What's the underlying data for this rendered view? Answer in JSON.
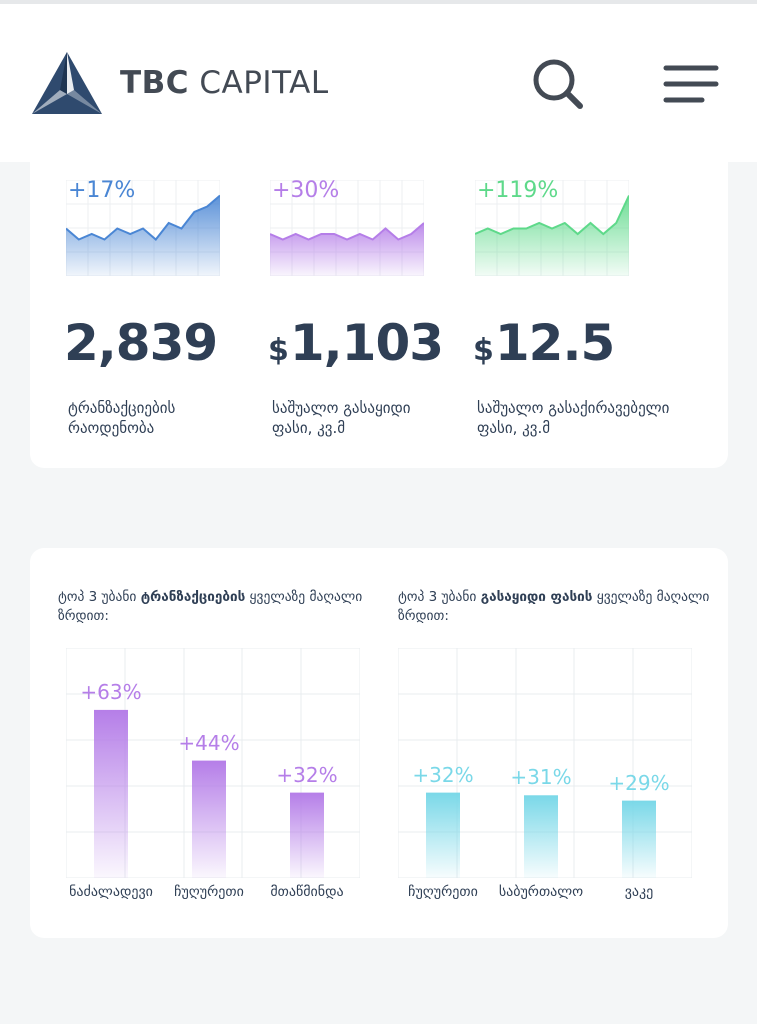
{
  "header": {
    "brand_bold": "TBC",
    "brand_light": "CAPITAL",
    "logo_icon": "tbc-triangle-logo-icon",
    "search_icon": "search-icon",
    "menu_icon": "hamburger-menu-icon"
  },
  "metrics": [
    {
      "change": "+17%",
      "value": "2,839",
      "currency": "",
      "label_line1": "ტრანზაქციების",
      "label_line2": "რაოდენობა",
      "color": "#4a86d4",
      "spark": [
        5,
        3,
        4,
        3,
        5,
        4,
        5,
        3,
        6,
        5,
        8,
        9,
        11
      ]
    },
    {
      "change": "+30%",
      "value": "1,103",
      "currency": "$",
      "label_line1": "საშუალო გასაყიდი",
      "label_line2": "ფასი, კვ.მ",
      "color": "#b57ee8",
      "spark": [
        4,
        3,
        4,
        3,
        4,
        4,
        3,
        4,
        3,
        5,
        3,
        4,
        6
      ]
    },
    {
      "change": "+119%",
      "value": "12.5",
      "currency": "$",
      "label_line1": "საშუალო გასაქირავებელი",
      "label_line2": "ფასი, კვ.მ",
      "color": "#5ed98a",
      "spark": [
        4,
        5,
        4,
        5,
        5,
        6,
        5,
        6,
        4,
        6,
        4,
        6,
        11
      ]
    }
  ],
  "chart_data": [
    {
      "type": "bar",
      "title_prefix": "ტოპ 3 უბანი ",
      "title_bold": "ტრანზაქციების",
      "title_suffix": " ყველაზე მაღალი ზრდით:",
      "categories": [
        "ნაძალადევი",
        "ჩუღურეთი",
        "მთაწმინდა"
      ],
      "values": [
        63,
        44,
        32
      ],
      "labels": [
        "+63%",
        "+44%",
        "+32%"
      ],
      "color": "#b57ee8",
      "ylim": [
        0,
        80
      ],
      "grid": true
    },
    {
      "type": "bar",
      "title_prefix": "ტოპ 3 უბანი ",
      "title_bold": "გასაყიდი ფასის",
      "title_suffix": " ყველაზე მაღალი ზრდით:",
      "categories": [
        "ჩუღურეთი",
        "საბურთალო",
        "ვაკე"
      ],
      "values": [
        32,
        31,
        29
      ],
      "labels": [
        "+32%",
        "+31%",
        "+29%"
      ],
      "color": "#7ad8e8",
      "ylim": [
        0,
        80
      ],
      "grid": true
    }
  ]
}
